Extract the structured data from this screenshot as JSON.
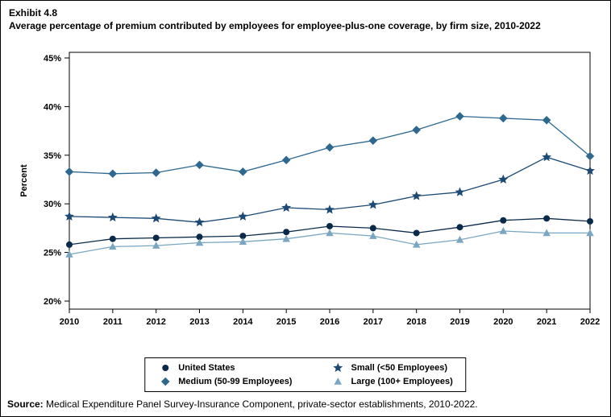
{
  "header": {
    "exhibit": "Exhibit 4.8",
    "title": "Average percentage of premium contributed by employees for employee-plus-one coverage, by firm size, 2010-2022"
  },
  "source": {
    "label": "Source:",
    "text": " Medical Expenditure Panel Survey-Insurance Component, private-sector establishments, 2010-2022."
  },
  "chart_data": {
    "type": "line",
    "x": [
      2010,
      2011,
      2012,
      2013,
      2014,
      2015,
      2016,
      2017,
      2018,
      2019,
      2020,
      2021,
      2022
    ],
    "ylabel": "Percent",
    "ylim": [
      20,
      45
    ],
    "ytick_step": 5,
    "ytick_suffix": "%",
    "grid": false,
    "legend_position": "bottom",
    "series": [
      {
        "name": "United States",
        "marker": "circle",
        "color": "#0b2a4a",
        "values": [
          25.8,
          26.4,
          26.5,
          26.6,
          26.7,
          27.1,
          27.7,
          27.5,
          27.0,
          27.6,
          28.3,
          28.5,
          28.2
        ]
      },
      {
        "name": "Small (<50 Employees)",
        "marker": "star",
        "color": "#1d4a74",
        "values": [
          28.7,
          28.6,
          28.5,
          28.1,
          28.7,
          29.6,
          29.4,
          29.9,
          30.8,
          31.2,
          32.5,
          34.8,
          33.4
        ]
      },
      {
        "name": "Medium (50-99 Employees)",
        "marker": "diamond",
        "color": "#2e688f",
        "values": [
          33.3,
          33.1,
          33.2,
          34.0,
          33.3,
          34.5,
          35.8,
          36.5,
          37.6,
          39.0,
          38.8,
          38.6,
          34.9
        ]
      },
      {
        "name": "Large (100+ Employees)",
        "marker": "triangle",
        "color": "#7aa6c2",
        "values": [
          24.8,
          25.6,
          25.7,
          26.0,
          26.1,
          26.4,
          27.0,
          26.7,
          25.8,
          26.3,
          27.2,
          27.0,
          27.0
        ]
      }
    ],
    "legend_order": [
      0,
      1,
      2,
      3
    ]
  }
}
